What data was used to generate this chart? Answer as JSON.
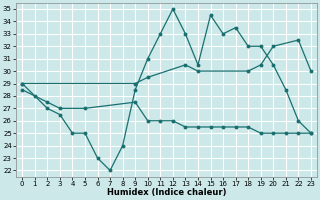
{
  "xlabel": "Humidex (Indice chaleur)",
  "bg_color": "#cce8e8",
  "line_color": "#1a7070",
  "grid_color": "#ffffff",
  "xlim": [
    -0.5,
    23.5
  ],
  "ylim": [
    21.5,
    35.5
  ],
  "yticks": [
    22,
    23,
    24,
    25,
    26,
    27,
    28,
    29,
    30,
    31,
    32,
    33,
    34,
    35
  ],
  "xticks": [
    0,
    1,
    2,
    3,
    4,
    5,
    6,
    7,
    8,
    9,
    10,
    11,
    12,
    13,
    14,
    15,
    16,
    17,
    18,
    19,
    20,
    21,
    22,
    23
  ],
  "line1_x": [
    0,
    1,
    2,
    3,
    4,
    5,
    6,
    7,
    8,
    9,
    10,
    11,
    12,
    13,
    14,
    15,
    16,
    17,
    18,
    19,
    20,
    21,
    22,
    23
  ],
  "line1_y": [
    29,
    28,
    27,
    26.5,
    25,
    25,
    23,
    22,
    24,
    28.5,
    31,
    33,
    35,
    33,
    30.5,
    34.5,
    33,
    33.5,
    32,
    32,
    30.5,
    28.5,
    26,
    25
  ],
  "line2_x": [
    0,
    2,
    3,
    5,
    9,
    10,
    11,
    12,
    13,
    14,
    15,
    16,
    17,
    18,
    19,
    20,
    21,
    22,
    23
  ],
  "line2_y": [
    28.5,
    27.5,
    27,
    27,
    27.5,
    26,
    26,
    26,
    25.5,
    25.5,
    25.5,
    25.5,
    25.5,
    25.5,
    25,
    25,
    25,
    25,
    25
  ],
  "line3_x": [
    0,
    9,
    10,
    13,
    14,
    18,
    19,
    20,
    22,
    23
  ],
  "line3_y": [
    29,
    29,
    29.5,
    30.5,
    30,
    30,
    30.5,
    32,
    32.5,
    30
  ]
}
